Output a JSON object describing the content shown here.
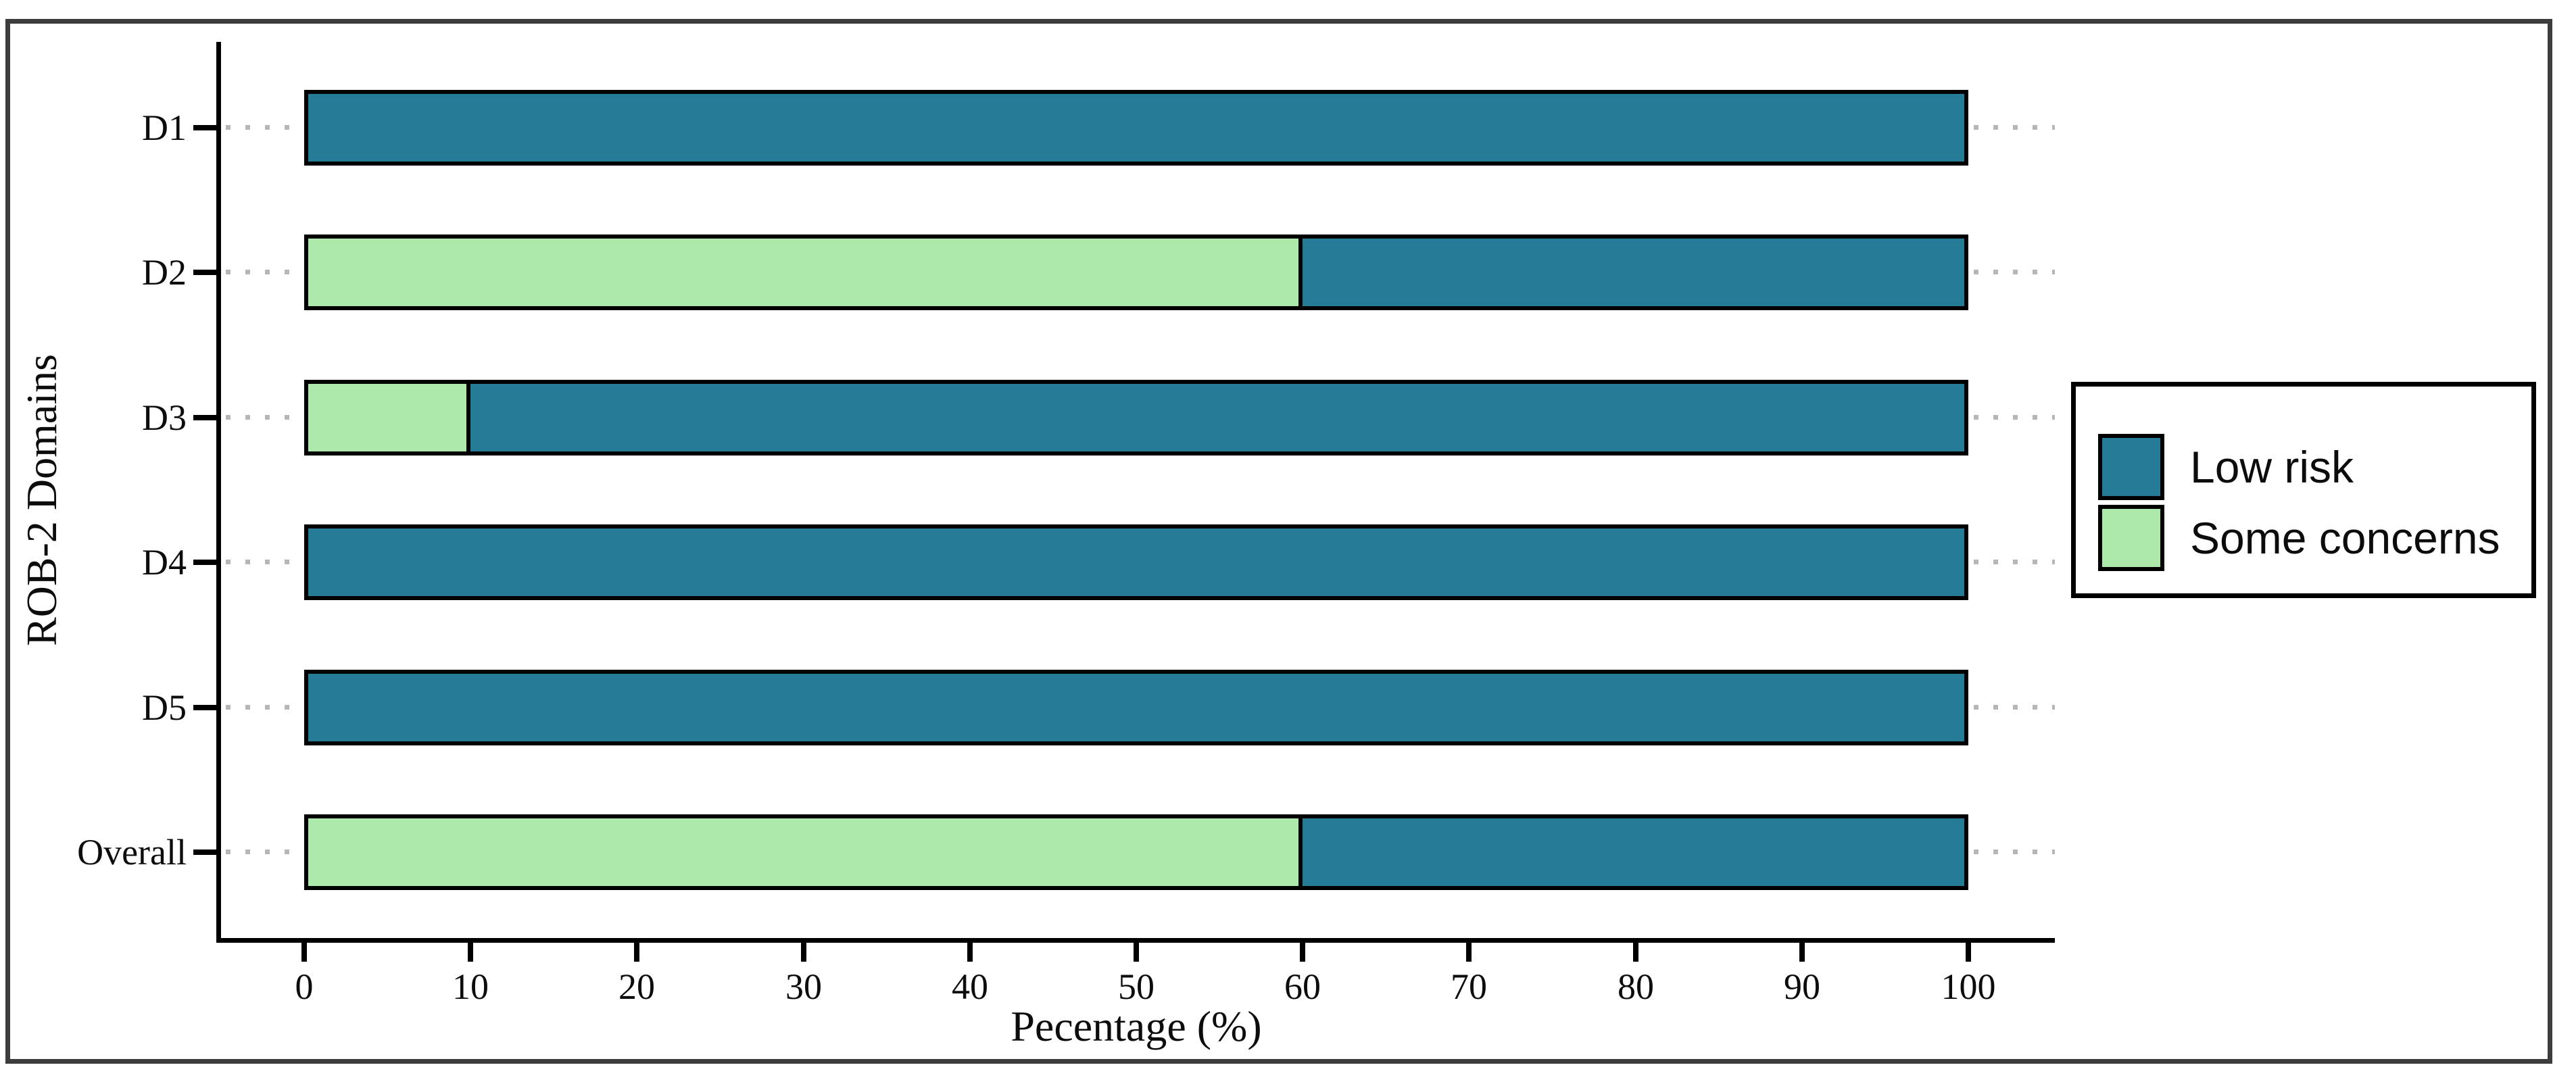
{
  "chart_data": {
    "type": "bar",
    "orientation": "horizontal",
    "stacked": true,
    "title": "",
    "xlabel": "Pecentage (%)",
    "ylabel": "ROB-2 Domains",
    "xlim": [
      0,
      100
    ],
    "xticks": [
      0,
      10,
      20,
      30,
      40,
      50,
      60,
      70,
      80,
      90,
      100
    ],
    "grid": false,
    "legend_position": "right",
    "categories": [
      "D1",
      "D2",
      "D3",
      "D4",
      "D5",
      "Overall"
    ],
    "series": [
      {
        "name": "Low risk",
        "color": "#267b96",
        "values": [
          100,
          40,
          90,
          100,
          100,
          40
        ]
      },
      {
        "name": "Some concerns",
        "color": "#ade9aa",
        "values": [
          0,
          60,
          10,
          0,
          0,
          60
        ]
      }
    ],
    "segment_draw_order": [
      "Some concerns",
      "Low risk"
    ],
    "bar_border_color": "#000000",
    "axis_color": "#000000",
    "leader_dot_color": "#b6b6b6",
    "frame_color": "#3d3d3d"
  }
}
